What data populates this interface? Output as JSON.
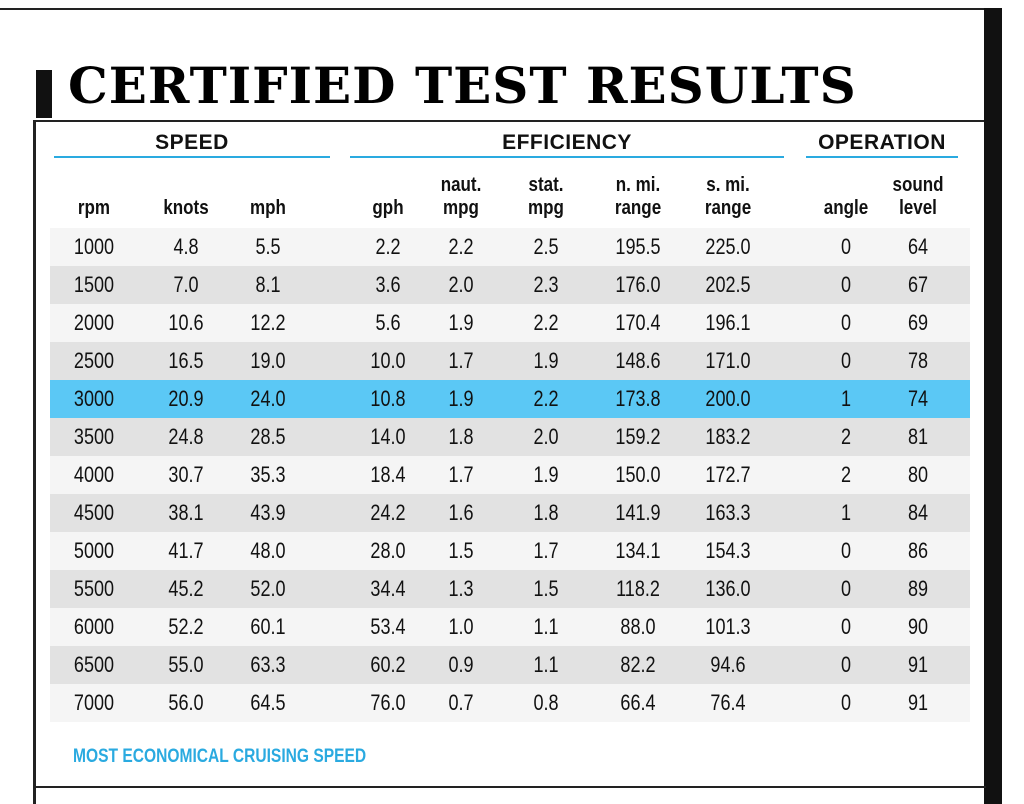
{
  "title": "CERTIFIED TEST RESULTS",
  "groups": {
    "speed": "SPEED",
    "efficiency": "EFFICIENCY",
    "operation": "OPERATION"
  },
  "columns": {
    "rpm": [
      "rpm"
    ],
    "knots": [
      "knots"
    ],
    "mph": [
      "mph"
    ],
    "gph": [
      "gph"
    ],
    "naut_mpg": [
      "naut.",
      "mpg"
    ],
    "stat_mpg": [
      "stat.",
      "mpg"
    ],
    "n_mi_range": [
      "n. mi.",
      "range"
    ],
    "s_mi_range": [
      "s. mi.",
      "range"
    ],
    "angle": [
      "angle"
    ],
    "sound_level": [
      "sound",
      "level"
    ]
  },
  "rows": [
    [
      "1000",
      "4.8",
      "5.5",
      "2.2",
      "2.2",
      "2.5",
      "195.5",
      "225.0",
      "0",
      "64"
    ],
    [
      "1500",
      "7.0",
      "8.1",
      "3.6",
      "2.0",
      "2.3",
      "176.0",
      "202.5",
      "0",
      "67"
    ],
    [
      "2000",
      "10.6",
      "12.2",
      "5.6",
      "1.9",
      "2.2",
      "170.4",
      "196.1",
      "0",
      "69"
    ],
    [
      "2500",
      "16.5",
      "19.0",
      "10.0",
      "1.7",
      "1.9",
      "148.6",
      "171.0",
      "0",
      "78"
    ],
    [
      "3000",
      "20.9",
      "24.0",
      "10.8",
      "1.9",
      "2.2",
      "173.8",
      "200.0",
      "1",
      "74"
    ],
    [
      "3500",
      "24.8",
      "28.5",
      "14.0",
      "1.8",
      "2.0",
      "159.2",
      "183.2",
      "2",
      "81"
    ],
    [
      "4000",
      "30.7",
      "35.3",
      "18.4",
      "1.7",
      "1.9",
      "150.0",
      "172.7",
      "2",
      "80"
    ],
    [
      "4500",
      "38.1",
      "43.9",
      "24.2",
      "1.6",
      "1.8",
      "141.9",
      "163.3",
      "1",
      "84"
    ],
    [
      "5000",
      "41.7",
      "48.0",
      "28.0",
      "1.5",
      "1.7",
      "134.1",
      "154.3",
      "0",
      "86"
    ],
    [
      "5500",
      "45.2",
      "52.0",
      "34.4",
      "1.3",
      "1.5",
      "118.2",
      "136.0",
      "0",
      "89"
    ],
    [
      "6000",
      "52.2",
      "60.1",
      "53.4",
      "1.0",
      "1.1",
      "88.0",
      "101.3",
      "0",
      "90"
    ],
    [
      "6500",
      "55.0",
      "63.3",
      "60.2",
      "0.9",
      "1.1",
      "82.2",
      "94.6",
      "0",
      "91"
    ],
    [
      "7000",
      "56.0",
      "64.5",
      "76.0",
      "0.7",
      "0.8",
      "66.4",
      "76.4",
      "0",
      "91"
    ]
  ],
  "highlighted_row": "3000",
  "legend": "MOST ECONOMICAL CRUISING SPEED",
  "colors": {
    "accent": "#2aaae0",
    "highlight": "#5bc8f5",
    "row_light": "#f5f5f5",
    "row_dark": "#e2e2e2"
  }
}
